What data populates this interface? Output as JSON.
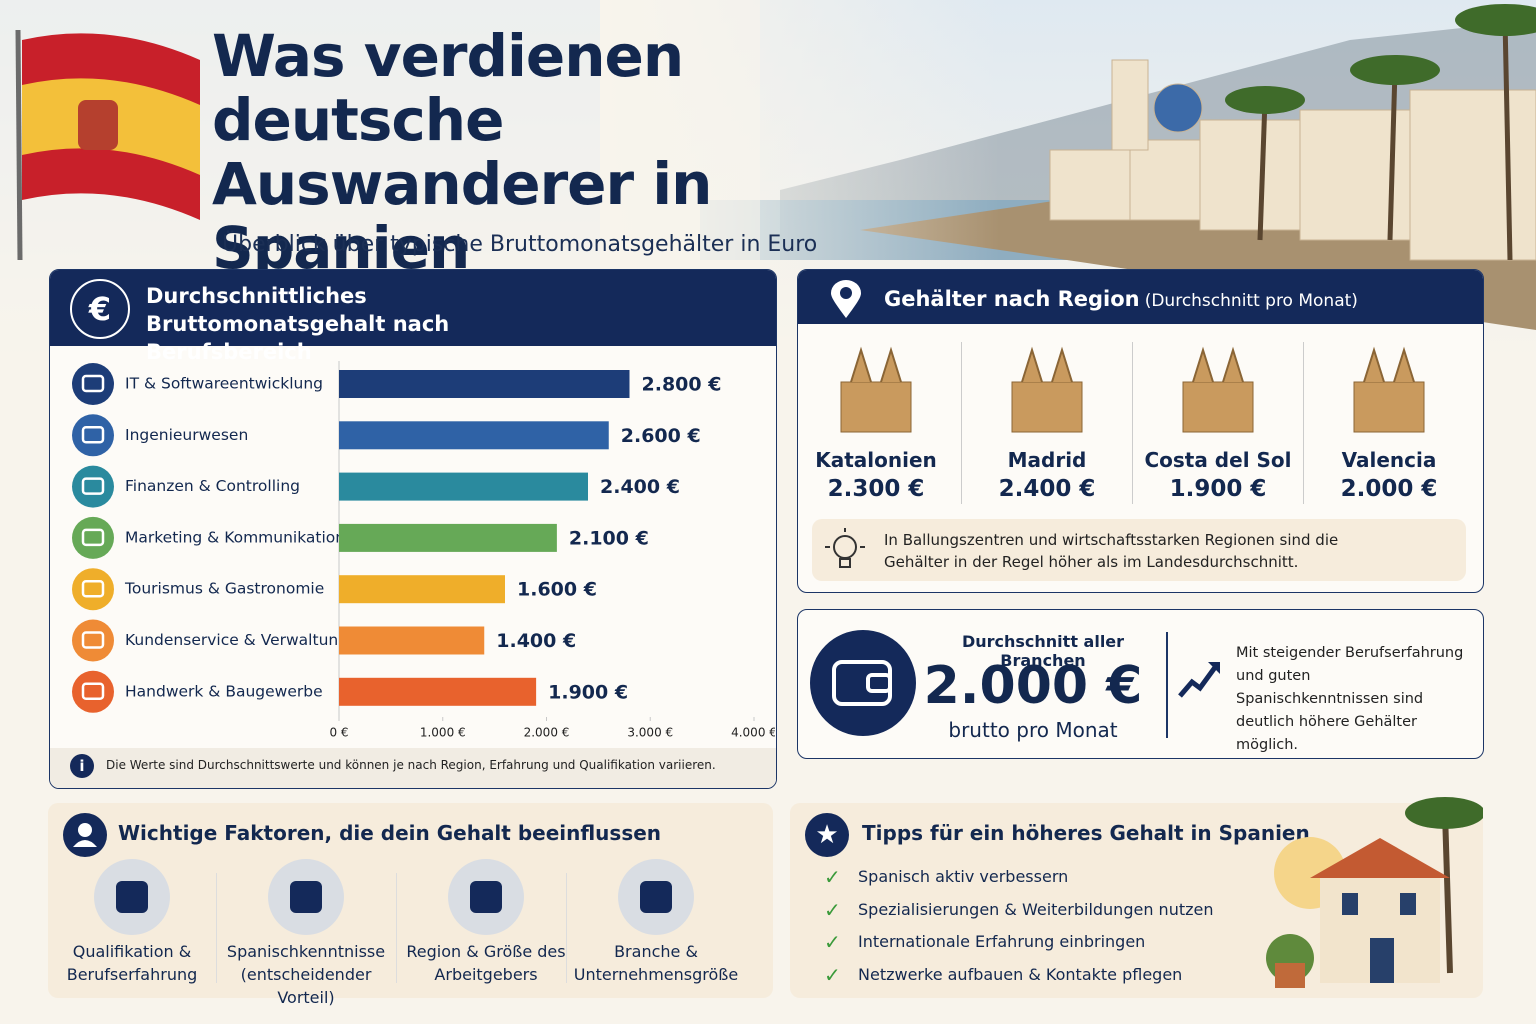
{
  "header": {
    "title": "Was verdienen deutsche Auswanderer in Spanien durchschnittlich?",
    "subtitle": "Überblick über typische Bruttomonatsgehälter in Euro"
  },
  "chart_data": {
    "type": "bar",
    "orientation": "horizontal",
    "title": "Durchschnittliches Bruttomonatsgehalt nach Berufsbereich",
    "categories": [
      "IT & Softwareentwicklung",
      "Ingenieurwesen",
      "Finanzen & Controlling",
      "Marketing & Kommunikation",
      "Tourismus & Gastronomie",
      "Kundenservice & Verwaltung",
      "Handwerk & Baugewerbe"
    ],
    "values": [
      2800,
      2600,
      2400,
      2100,
      1600,
      1400,
      1900
    ],
    "value_labels": [
      "2.800 €",
      "2.600 €",
      "2.400 €",
      "2.100 €",
      "1.600 €",
      "1.400 €",
      "1.900 €"
    ],
    "colors": [
      "#1d3d78",
      "#2f62a6",
      "#2a8a9e",
      "#66a957",
      "#efae2a",
      "#ef8b36",
      "#e8622d"
    ],
    "xlim": [
      0,
      4000
    ],
    "xticks": [
      {
        "value": 0,
        "label": "0 €"
      },
      {
        "value": 1000,
        "label": "1.000 €"
      },
      {
        "value": 2000,
        "label": "2.000 €"
      },
      {
        "value": 3000,
        "label": "3.000 €"
      },
      {
        "value": 4000,
        "label": "4.000 €"
      }
    ],
    "note": "Die Werte sind Durchschnittswerte und können je nach Region, Erfahrung und Qualifikation variieren."
  },
  "regions": {
    "title": "Gehälter nach Region",
    "title_suffix": "(Durchschnitt pro Monat)",
    "items": [
      {
        "name": "Katalonien",
        "value": "2.300 €"
      },
      {
        "name": "Madrid",
        "value": "2.400 €"
      },
      {
        "name": "Costa del Sol",
        "value": "1.900 €"
      },
      {
        "name": "Valencia",
        "value": "2.000 €"
      }
    ],
    "note": "In Ballungszentren und wirtschaftsstarken Regionen sind die Gehälter in der Regel höher als im Landesdurchschnitt."
  },
  "average": {
    "label": "Durchschnitt aller Branchen",
    "value": "2.000 €",
    "unit": "brutto pro Monat",
    "note": "Mit steigender Berufserfahrung und guten Spanischkenntnissen sind deutlich höhere Gehälter möglich."
  },
  "factors": {
    "title": "Wichtige Faktoren, die dein Gehalt beeinflussen",
    "items": [
      "Qualifikation & Berufserfahrung",
      "Spanischkenntnisse (entscheidender Vorteil)",
      "Region & Größe des Arbeitgebers",
      "Branche & Unternehmensgröße"
    ]
  },
  "tips": {
    "title": "Tipps für ein höheres Gehalt in Spanien",
    "items": [
      "Spanisch aktiv verbessern",
      "Spezialisierungen & Weiterbildungen nutzen",
      "Internationale Erfahrung einbringen",
      "Netzwerke aufbauen & Kontakte pflegen"
    ]
  }
}
